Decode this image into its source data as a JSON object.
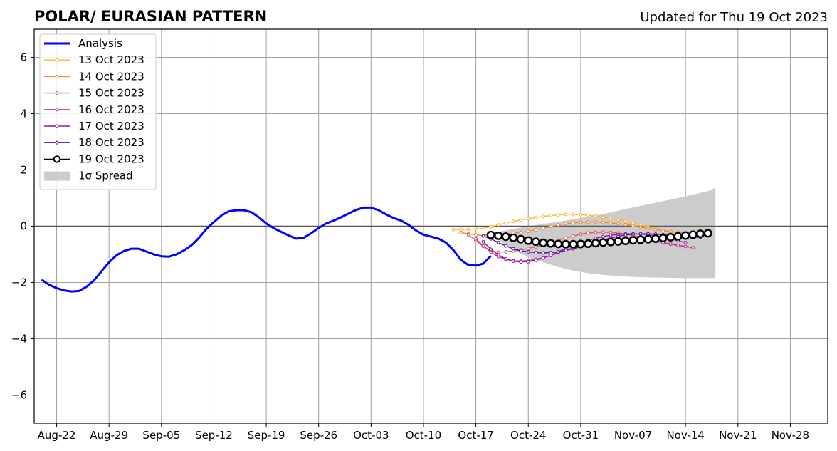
{
  "chart_data": {
    "type": "line",
    "title": "POLAR/ EURASIAN  PATTERN",
    "subtitle": "Updated for Thu 19 Oct 2023",
    "xlabel": "",
    "ylabel": "",
    "xlim": [
      "2023-08-19",
      "2023-12-03"
    ],
    "ylim": [
      -7,
      7
    ],
    "grid": true,
    "legend_position": "top-left",
    "x_ticks": [
      "2023-08-22",
      "2023-08-29",
      "2023-09-05",
      "2023-09-12",
      "2023-09-19",
      "2023-09-26",
      "2023-10-03",
      "2023-10-10",
      "2023-10-17",
      "2023-10-24",
      "2023-10-31",
      "2023-11-07",
      "2023-11-14",
      "2023-11-21",
      "2023-11-28"
    ],
    "x_tick_labels": [
      "Aug-22",
      "Aug-29",
      "Sep-05",
      "Sep-12",
      "Sep-19",
      "Sep-26",
      "Oct-03",
      "Oct-10",
      "Oct-17",
      "Oct-24",
      "Oct-31",
      "Nov-07",
      "Nov-14",
      "Nov-21",
      "Nov-28"
    ],
    "y_ticks": [
      -6,
      -4,
      -2,
      0,
      2,
      4,
      6
    ],
    "y_tick_labels": [
      "−6",
      "−4",
      "−2",
      "0",
      "2",
      "4",
      "6"
    ],
    "analysis": {
      "name": "Analysis",
      "color": "#0000ff",
      "points": [
        [
          "2023-08-20",
          -1.9
        ],
        [
          "2023-08-21",
          -2.08
        ],
        [
          "2023-08-22",
          -2.2
        ],
        [
          "2023-08-23",
          -2.28
        ],
        [
          "2023-08-24",
          -2.32
        ],
        [
          "2023-08-25",
          -2.3
        ],
        [
          "2023-08-26",
          -2.15
        ],
        [
          "2023-08-27",
          -1.92
        ],
        [
          "2023-08-28",
          -1.6
        ],
        [
          "2023-08-29",
          -1.28
        ],
        [
          "2023-08-30",
          -1.03
        ],
        [
          "2023-08-31",
          -0.88
        ],
        [
          "2023-09-01",
          -0.8
        ],
        [
          "2023-09-02",
          -0.8
        ],
        [
          "2023-09-03",
          -0.9
        ],
        [
          "2023-09-04",
          -1.0
        ],
        [
          "2023-09-05",
          -1.07
        ],
        [
          "2023-09-06",
          -1.08
        ],
        [
          "2023-09-07",
          -1.0
        ],
        [
          "2023-09-08",
          -0.86
        ],
        [
          "2023-09-09",
          -0.68
        ],
        [
          "2023-09-10",
          -0.42
        ],
        [
          "2023-09-11",
          -0.1
        ],
        [
          "2023-09-12",
          0.15
        ],
        [
          "2023-09-13",
          0.38
        ],
        [
          "2023-09-14",
          0.53
        ],
        [
          "2023-09-15",
          0.57
        ],
        [
          "2023-09-16",
          0.57
        ],
        [
          "2023-09-17",
          0.5
        ],
        [
          "2023-09-18",
          0.32
        ],
        [
          "2023-09-19",
          0.1
        ],
        [
          "2023-09-20",
          -0.07
        ],
        [
          "2023-09-21",
          -0.2
        ],
        [
          "2023-09-22",
          -0.33
        ],
        [
          "2023-09-23",
          -0.44
        ],
        [
          "2023-09-24",
          -0.41
        ],
        [
          "2023-09-25",
          -0.25
        ],
        [
          "2023-09-26",
          -0.06
        ],
        [
          "2023-09-27",
          0.1
        ],
        [
          "2023-09-28",
          0.2
        ],
        [
          "2023-09-29",
          0.32
        ],
        [
          "2023-09-30",
          0.45
        ],
        [
          "2023-10-01",
          0.58
        ],
        [
          "2023-10-02",
          0.66
        ],
        [
          "2023-10-03",
          0.66
        ],
        [
          "2023-10-04",
          0.57
        ],
        [
          "2023-10-05",
          0.42
        ],
        [
          "2023-10-06",
          0.29
        ],
        [
          "2023-10-07",
          0.2
        ],
        [
          "2023-10-08",
          0.05
        ],
        [
          "2023-10-09",
          -0.15
        ],
        [
          "2023-10-10",
          -0.3
        ],
        [
          "2023-10-11",
          -0.37
        ],
        [
          "2023-10-12",
          -0.44
        ],
        [
          "2023-10-13",
          -0.58
        ],
        [
          "2023-10-14",
          -0.85
        ],
        [
          "2023-10-15",
          -1.2
        ],
        [
          "2023-10-16",
          -1.38
        ],
        [
          "2023-10-17",
          -1.4
        ],
        [
          "2023-10-18",
          -1.33
        ],
        [
          "2023-10-19",
          -1.05
        ]
      ]
    },
    "spread": {
      "name": "1σ Spread",
      "color": "#cccccc",
      "start": "2023-10-19",
      "end": "2023-11-17",
      "upper": [
        [
          0,
          -0.25
        ],
        [
          1,
          -0.2
        ],
        [
          2,
          -0.15
        ],
        [
          3,
          -0.1
        ],
        [
          5,
          0.0
        ],
        [
          7,
          0.08
        ],
        [
          9,
          0.16
        ],
        [
          11,
          0.25
        ],
        [
          13,
          0.34
        ],
        [
          15,
          0.43
        ],
        [
          17,
          0.55
        ],
        [
          19,
          0.67
        ],
        [
          21,
          0.78
        ],
        [
          23,
          0.89
        ],
        [
          25,
          1.0
        ],
        [
          27,
          1.12
        ],
        [
          29,
          1.25
        ],
        [
          30,
          1.37
        ]
      ],
      "lower": [
        [
          0,
          -0.25
        ],
        [
          1,
          -0.45
        ],
        [
          2,
          -0.7
        ],
        [
          3,
          -0.85
        ],
        [
          5,
          -1.1
        ],
        [
          7,
          -1.28
        ],
        [
          9,
          -1.45
        ],
        [
          11,
          -1.58
        ],
        [
          13,
          -1.67
        ],
        [
          15,
          -1.73
        ],
        [
          17,
          -1.78
        ],
        [
          19,
          -1.8
        ],
        [
          21,
          -1.82
        ],
        [
          23,
          -1.83
        ],
        [
          25,
          -1.84
        ],
        [
          27,
          -1.84
        ],
        [
          29,
          -1.84
        ],
        [
          30,
          -1.84
        ]
      ]
    },
    "series": [
      {
        "name": "13 Oct 2023",
        "color": "#fbb833",
        "start": "2023-10-14",
        "values": [
          -0.12,
          -0.12,
          -0.11,
          -0.1,
          -0.07,
          -0.02,
          0.05,
          0.11,
          0.17,
          0.22,
          0.27,
          0.31,
          0.35,
          0.38,
          0.4,
          0.42,
          0.42,
          0.41,
          0.39,
          0.36,
          0.32,
          0.28,
          0.23,
          0.18,
          0.12,
          0.05,
          -0.03,
          -0.1,
          -0.16,
          -0.21,
          -0.24
        ]
      },
      {
        "name": "14 Oct 2023",
        "color": "#f18a42",
        "start": "2023-10-15",
        "values": [
          -0.22,
          -0.27,
          -0.31,
          -0.33,
          -0.32,
          -0.3,
          -0.28,
          -0.25,
          -0.22,
          -0.18,
          -0.13,
          -0.07,
          -0.01,
          0.05,
          0.09,
          0.12,
          0.14,
          0.15,
          0.15,
          0.14,
          0.12,
          0.09,
          0.06,
          0.02,
          -0.03,
          -0.08,
          -0.12,
          -0.16,
          -0.19,
          -0.22,
          -0.24
        ]
      },
      {
        "name": "15 Oct 2023",
        "color": "#dc5b5e",
        "start": "2023-10-16",
        "values": [
          -0.3,
          -0.5,
          -0.72,
          -0.88,
          -0.92,
          -0.91,
          -0.88,
          -0.84,
          -0.79,
          -0.73,
          -0.66,
          -0.58,
          -0.5,
          -0.42,
          -0.35,
          -0.28,
          -0.24,
          -0.22,
          -0.21,
          -0.22,
          -0.24,
          -0.28,
          -0.33,
          -0.39,
          -0.45,
          -0.52,
          -0.58,
          -0.64,
          -0.68,
          -0.72,
          -0.76
        ]
      },
      {
        "name": "16 Oct 2023",
        "color": "#b83a8d",
        "start": "2023-10-17",
        "values": [
          -0.45,
          -0.7,
          -0.92,
          -1.08,
          -1.18,
          -1.23,
          -1.24,
          -1.22,
          -1.18,
          -1.12,
          -1.04,
          -0.95,
          -0.85,
          -0.76,
          -0.68,
          -0.61,
          -0.55,
          -0.5,
          -0.47,
          -0.45,
          -0.44,
          -0.45,
          -0.47,
          -0.5,
          -0.54,
          -0.58,
          -0.63,
          -0.68,
          -0.72,
          -0.76
        ]
      },
      {
        "name": "17 Oct 2023",
        "color": "#8f18a6",
        "start": "2023-10-18",
        "values": [
          -0.55,
          -0.82,
          -1.02,
          -1.16,
          -1.24,
          -1.27,
          -1.26,
          -1.21,
          -1.13,
          -1.03,
          -0.91,
          -0.79,
          -0.68,
          -0.58,
          -0.5,
          -0.43,
          -0.37,
          -0.32,
          -0.29,
          -0.27,
          -0.27,
          -0.28,
          -0.3,
          -0.34,
          -0.39,
          -0.45,
          -0.52,
          -0.58
        ]
      },
      {
        "name": "18 Oct 2023",
        "color": "#5a0da6",
        "start": "2023-10-18",
        "values": [
          -0.35,
          -0.45,
          -0.58,
          -0.7,
          -0.8,
          -0.87,
          -0.91,
          -0.94,
          -0.95,
          -0.94,
          -0.91,
          -0.86,
          -0.8,
          -0.73,
          -0.65,
          -0.57,
          -0.49,
          -0.42,
          -0.36,
          -0.31,
          -0.28,
          -0.27,
          -0.27,
          -0.28,
          -0.3,
          -0.33,
          -0.36,
          -0.38,
          -0.39,
          -0.39
        ]
      },
      {
        "name": "19 Oct 2023",
        "color": "#000000",
        "start": "2023-10-19",
        "values": [
          -0.31,
          -0.34,
          -0.37,
          -0.41,
          -0.46,
          -0.51,
          -0.55,
          -0.59,
          -0.61,
          -0.63,
          -0.64,
          -0.64,
          -0.63,
          -0.62,
          -0.6,
          -0.58,
          -0.56,
          -0.54,
          -0.52,
          -0.5,
          -0.48,
          -0.46,
          -0.44,
          -0.42,
          -0.39,
          -0.36,
          -0.33,
          -0.3,
          -0.27,
          -0.25
        ]
      }
    ]
  }
}
